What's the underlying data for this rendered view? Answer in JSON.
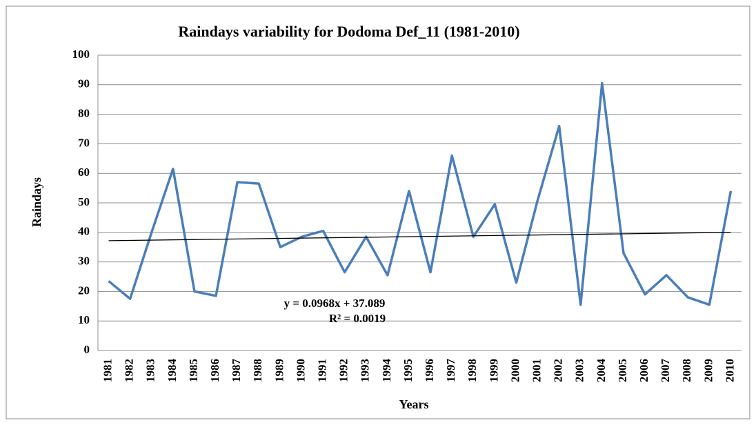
{
  "chart_data": {
    "type": "line",
    "title": "Raindays variability for Dodoma  Def_11 (1981-2010)",
    "x_label": "Years",
    "y_label": "Raindays",
    "categories": [
      "1981",
      "1982",
      "1983",
      "1984",
      "1985",
      "1986",
      "1987",
      "1988",
      "1989",
      "1990",
      "1991",
      "1992",
      "1993",
      "1994",
      "1995",
      "1996",
      "1997",
      "1998",
      "1999",
      "2000",
      "2001",
      "2002",
      "2003",
      "2004",
      "2005",
      "2006",
      "2007",
      "2008",
      "2009",
      "2010"
    ],
    "series": [
      {
        "name": "Raindays",
        "color": "#4a7ebb",
        "values": [
          23.5,
          17.5,
          40,
          61.5,
          20,
          18.5,
          57,
          56.5,
          35,
          38.5,
          40.5,
          26.5,
          38.5,
          25.5,
          54,
          26.5,
          66,
          38.5,
          49.5,
          23,
          51,
          76,
          15.5,
          90.5,
          33,
          19,
          25.5,
          18,
          15.5,
          54
        ]
      }
    ],
    "trendline": {
      "slope": 0.0968,
      "intercept": 37.089,
      "color": "#000000",
      "equation": "y = 0.0968x + 37.089",
      "r_squared": "R² = 0.0019"
    },
    "ylim": [
      0,
      100
    ],
    "yticks": [
      0,
      10,
      20,
      30,
      40,
      50,
      60,
      70,
      80,
      90,
      100
    ],
    "grid": true
  }
}
